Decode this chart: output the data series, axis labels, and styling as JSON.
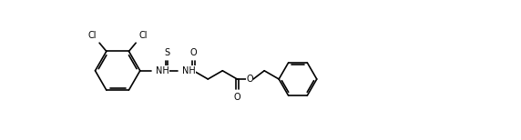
{
  "background": "#ffffff",
  "line_color": "#000000",
  "line_width": 1.2,
  "font_size": 7.0,
  "fig_width": 5.72,
  "fig_height": 1.54,
  "xlim": [
    0,
    572
  ],
  "ylim": [
    0,
    154
  ]
}
